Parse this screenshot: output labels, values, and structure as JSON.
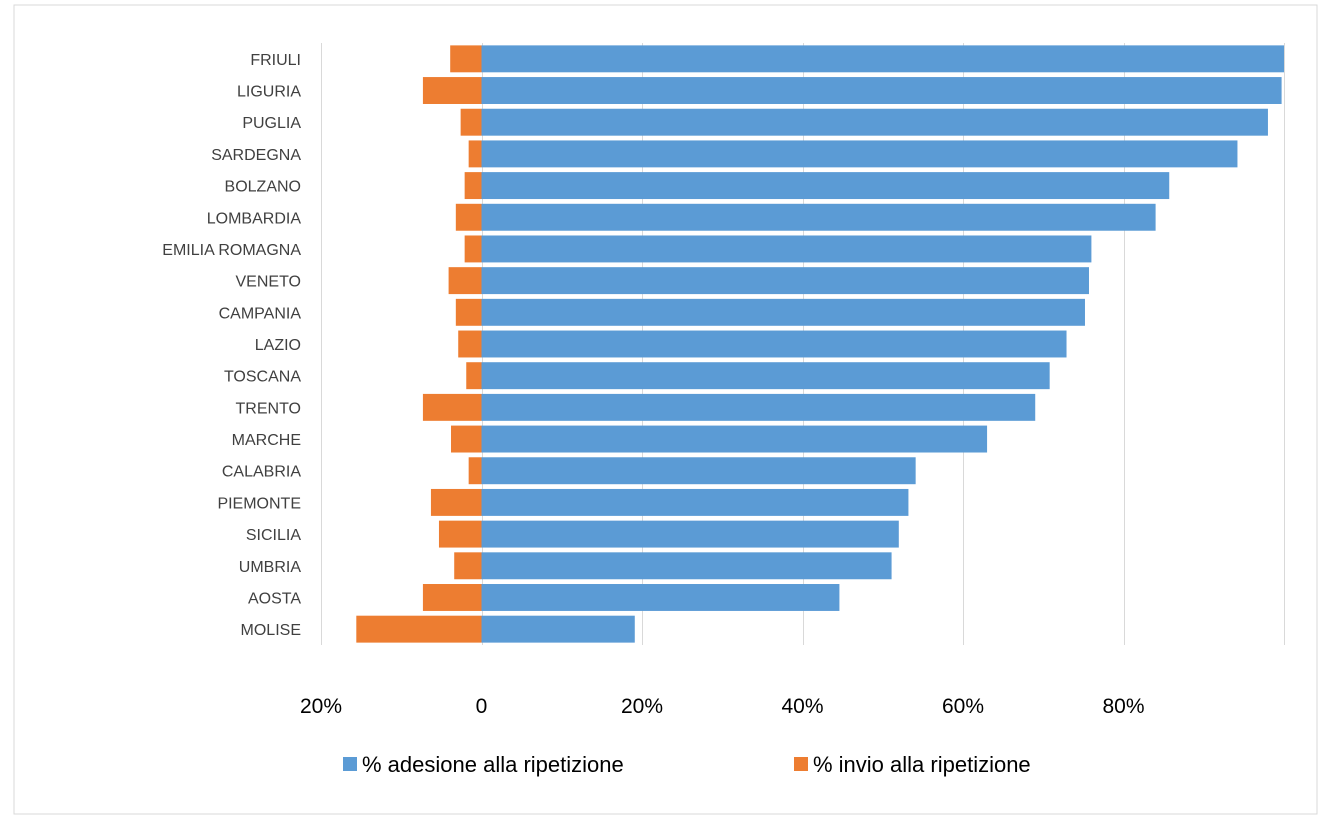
{
  "chart_data": {
    "type": "bar",
    "orientation": "horizontal",
    "categories": [
      "FRIULI",
      "LIGURIA",
      "PUGLIA",
      "SARDEGNA",
      "BOLZANO",
      "LOMBARDIA",
      "EMILIA ROMAGNA",
      "VENETO",
      "CAMPANIA",
      "LAZIO",
      "TOSCANA",
      "TRENTO",
      "MARCHE",
      "CALABRIA",
      "PIEMONTE",
      "SICILIA",
      "UMBRIA",
      "AOSTA",
      "MOLISE"
    ],
    "series": [
      {
        "name": "% adesione alla ripetizione",
        "color": "#5b9bd5",
        "values": [
          100,
          99.7,
          98,
          94.2,
          85.7,
          84,
          76,
          75.7,
          75.2,
          72.9,
          70.8,
          69,
          63,
          54.1,
          53.2,
          52,
          51.1,
          44.6,
          19.1
        ]
      },
      {
        "name": "% invio alla ripetizione",
        "color": "#ed7d31",
        "values": [
          -3.9,
          -7.3,
          -2.6,
          -1.6,
          -2.1,
          -3.2,
          -2.1,
          -4.1,
          -3.2,
          -2.9,
          -1.9,
          -7.3,
          -3.8,
          -1.6,
          -6.3,
          -5.3,
          -3.4,
          -7.3,
          -15.6
        ]
      }
    ],
    "xlim": [
      -20,
      100
    ],
    "xticks": [
      {
        "value": -20,
        "label": "20%"
      },
      {
        "value": 0,
        "label": "0"
      },
      {
        "value": 20,
        "label": "20%"
      },
      {
        "value": 40,
        "label": "40%"
      },
      {
        "value": 60,
        "label": "60%"
      },
      {
        "value": 80,
        "label": "80%"
      }
    ],
    "gridlines": [
      -20,
      0,
      20,
      40,
      60,
      80,
      100
    ],
    "grid": true,
    "legend": "bottom",
    "title": "",
    "xlabel": "",
    "ylabel": ""
  }
}
